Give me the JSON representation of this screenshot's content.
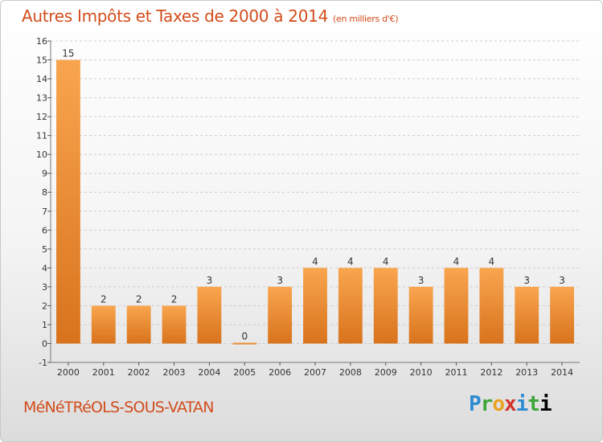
{
  "header": {
    "title": "Autres Impôts et Taxes de 2000 à 2014",
    "unit": "(en milliers d'€)"
  },
  "footer": {
    "commune": "MéNéTRéOLS-SOUS-VATAN",
    "logo_letters": [
      "P",
      "r",
      "o",
      "x",
      "i",
      "t",
      "i"
    ]
  },
  "colors": {
    "bar_light": "#f9a54f",
    "bar_dark": "#d8731c",
    "grid": "#cccccc",
    "title": "#d24d1d"
  },
  "chart_data": {
    "type": "bar",
    "categories": [
      "2000",
      "2001",
      "2002",
      "2003",
      "2004",
      "2005",
      "2006",
      "2007",
      "2008",
      "2009",
      "2010",
      "2011",
      "2012",
      "2013",
      "2014"
    ],
    "values": [
      15,
      2,
      2,
      2,
      3,
      0,
      3,
      4,
      4,
      4,
      3,
      4,
      4,
      3,
      3
    ],
    "ylim": [
      -1,
      16
    ],
    "yticks": [
      "-1",
      "0",
      "1",
      "2",
      "3",
      "4",
      "5",
      "6",
      "7",
      "8",
      "9",
      "10",
      "11",
      "12",
      "13",
      "14",
      "15",
      "16"
    ],
    "grid": true
  }
}
